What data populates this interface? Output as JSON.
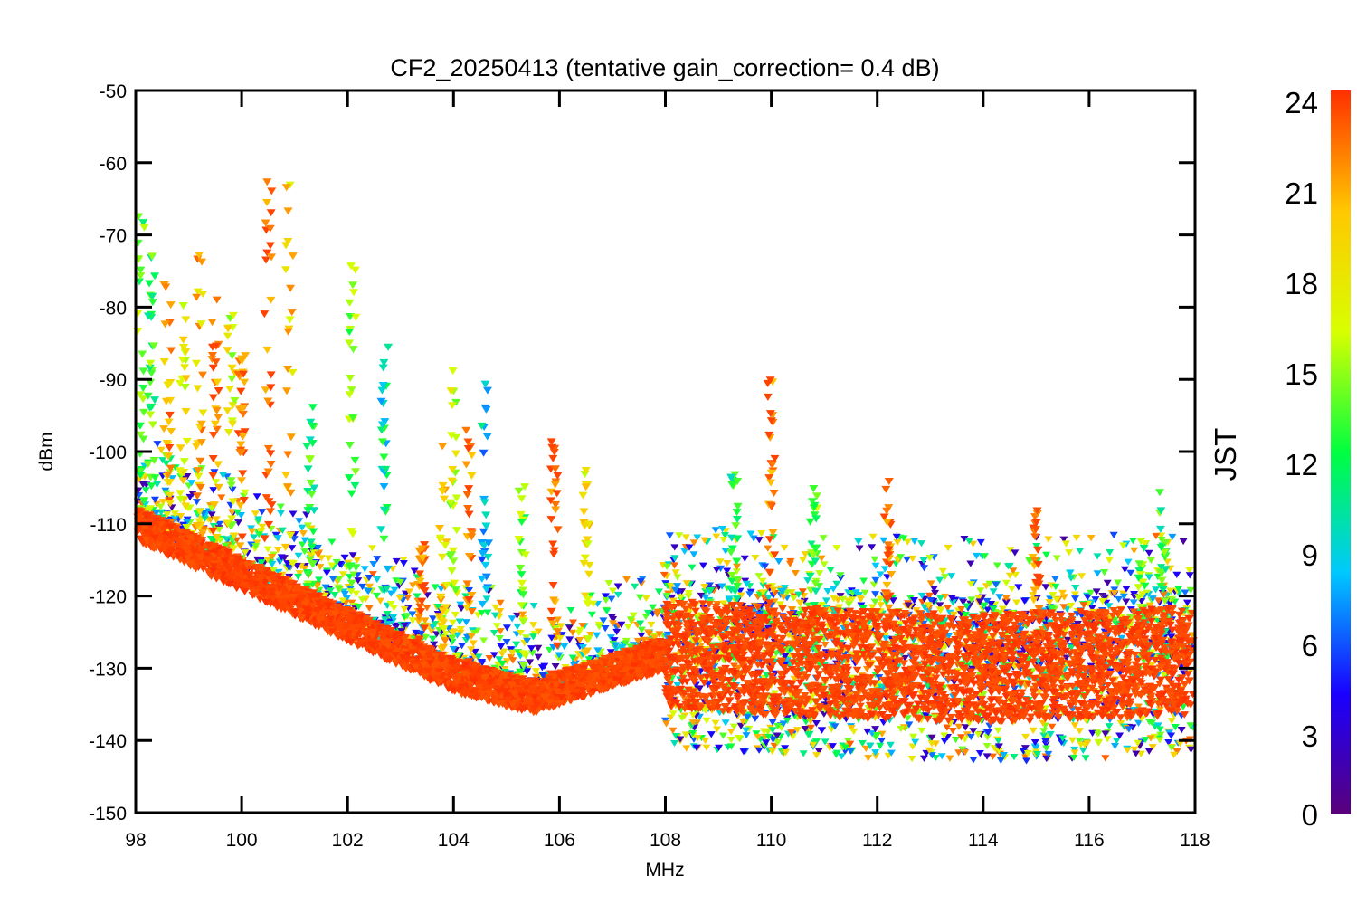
{
  "chart_data": {
    "type": "scatter",
    "title": "CF2_20250413 (tentative gain_correction=  0.4 dB)",
    "xlabel": "MHz",
    "ylabel": "dBm",
    "xlim": [
      98,
      118
    ],
    "ylim": [
      -150,
      -50
    ],
    "x_ticks": [
      "98",
      "100",
      "102",
      "104",
      "106",
      "108",
      "110",
      "112",
      "114",
      "116",
      "118"
    ],
    "y_ticks": [
      "-50",
      "-60",
      "-70",
      "-80",
      "-90",
      "-100",
      "-110",
      "-120",
      "-130",
      "-140",
      "-150"
    ],
    "marker": "triangle-down",
    "grid": false,
    "colorbar": {
      "label": "JST",
      "range": [
        0,
        24
      ],
      "ticks": [
        "24",
        "21",
        "18",
        "15",
        "12",
        "9",
        "6",
        "3",
        "0"
      ],
      "colormap": [
        "#5a007a",
        "#1a00ff",
        "#00c8ff",
        "#00ff40",
        "#d8ff00",
        "#ffc800",
        "#ff3000"
      ]
    },
    "noise_floor": [
      {
        "x": 98.0,
        "y": -110
      },
      {
        "x": 100.0,
        "y": -117
      },
      {
        "x": 102.0,
        "y": -124
      },
      {
        "x": 104.0,
        "y": -131
      },
      {
        "x": 105.5,
        "y": -134
      },
      {
        "x": 108.0,
        "y": -128
      },
      {
        "x": 110.0,
        "y": -129
      },
      {
        "x": 114.0,
        "y": -130
      },
      {
        "x": 118.0,
        "y": -129
      }
    ],
    "signals": [
      {
        "x": 98.1,
        "peak": -64,
        "jst": 14
      },
      {
        "x": 98.3,
        "peak": -70,
        "jst": 13
      },
      {
        "x": 98.6,
        "peak": -76,
        "jst": 21
      },
      {
        "x": 98.9,
        "peak": -79,
        "jst": 18
      },
      {
        "x": 99.2,
        "peak": -72,
        "jst": 20
      },
      {
        "x": 99.5,
        "peak": -78,
        "jst": 22
      },
      {
        "x": 99.8,
        "peak": -80,
        "jst": 17
      },
      {
        "x": 100.0,
        "peak": -85,
        "jst": 23
      },
      {
        "x": 100.5,
        "peak": -60,
        "jst": 23
      },
      {
        "x": 100.9,
        "peak": -62,
        "jst": 19
      },
      {
        "x": 101.3,
        "peak": -93,
        "jst": 12
      },
      {
        "x": 102.1,
        "peak": -73,
        "jst": 14
      },
      {
        "x": 102.7,
        "peak": -84,
        "jst": 10
      },
      {
        "x": 103.4,
        "peak": -112,
        "jst": 23
      },
      {
        "x": 103.8,
        "peak": -97,
        "jst": 19
      },
      {
        "x": 104.0,
        "peak": -88,
        "jst": 16
      },
      {
        "x": 104.3,
        "peak": -95,
        "jst": 22
      },
      {
        "x": 104.6,
        "peak": -89,
        "jst": 8
      },
      {
        "x": 105.3,
        "peak": -104,
        "jst": 14
      },
      {
        "x": 105.9,
        "peak": -98,
        "jst": 23
      },
      {
        "x": 106.5,
        "peak": -100,
        "jst": 18
      },
      {
        "x": 109.3,
        "peak": -103,
        "jst": 12
      },
      {
        "x": 110.0,
        "peak": -90,
        "jst": 23
      },
      {
        "x": 110.8,
        "peak": -104,
        "jst": 13
      },
      {
        "x": 112.2,
        "peak": -103,
        "jst": 23
      },
      {
        "x": 115.0,
        "peak": -106,
        "jst": 23
      },
      {
        "x": 117.0,
        "peak": -110,
        "jst": 14
      },
      {
        "x": 117.4,
        "peak": -105,
        "jst": 12
      }
    ]
  }
}
